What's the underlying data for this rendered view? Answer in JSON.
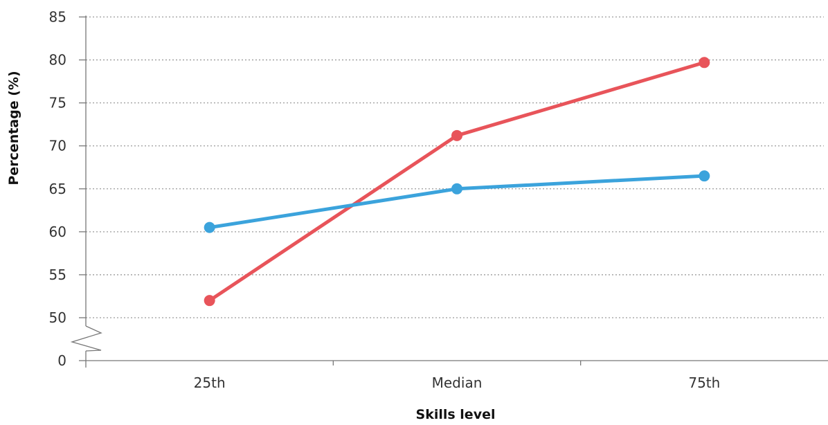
{
  "chart_data": {
    "type": "line",
    "xlabel": "Skills level",
    "ylabel": "Percentage (%)",
    "categories": [
      "25th",
      "Median",
      "75th"
    ],
    "y_ticks": [
      0,
      50,
      55,
      60,
      65,
      70,
      75,
      80,
      85
    ],
    "y_axis_break": true,
    "ylim": [
      50,
      85
    ],
    "grid": "horizontal-dotted",
    "series": [
      {
        "color": "#e8545a",
        "values": [
          52.0,
          71.2,
          79.7
        ]
      },
      {
        "color": "#3ba3dc",
        "values": [
          60.5,
          65.0,
          66.5
        ]
      }
    ]
  }
}
